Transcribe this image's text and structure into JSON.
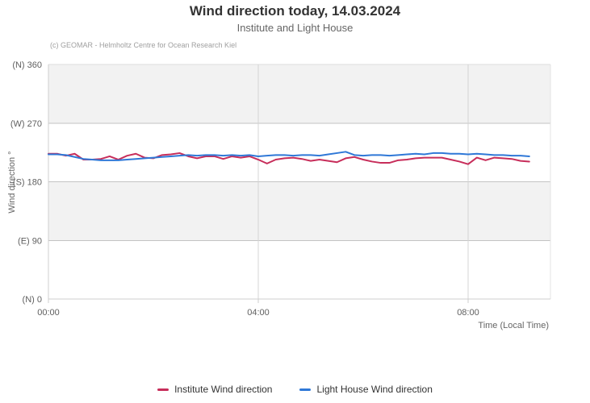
{
  "chart_data": {
    "type": "line",
    "title": "Wind direction today, 14.03.2024",
    "subtitle": "Institute and Light House",
    "credit": "(c) GEOMAR - Helmholtz Centre for Ocean Research Kiel",
    "xlabel": "Time (Local Time)",
    "ylabel": "Wind direction °",
    "ylim": [
      0,
      360
    ],
    "xlim_hours": [
      0,
      9.57
    ],
    "x_tick_hours": [
      0,
      4,
      8
    ],
    "x_tick_labels": [
      "00:00",
      "04:00",
      "08:00"
    ],
    "y_ticks": [
      {
        "value": 0,
        "label": "(N) 0"
      },
      {
        "value": 90,
        "label": "(E) 90"
      },
      {
        "value": 180,
        "label": "(S) 180"
      },
      {
        "value": 270,
        "label": "(W) 270"
      },
      {
        "value": 360,
        "label": "(N) 360"
      }
    ],
    "bands": [
      {
        "from": 270,
        "to": 360
      },
      {
        "from": 90,
        "to": 180
      }
    ],
    "band_color": "#f2f2f2",
    "grid": true,
    "legend_position": "bottom-center",
    "start_time": "00:00",
    "interval_minutes": 10,
    "series": [
      {
        "name": "Institute Wind direction",
        "color": "#c72d5a",
        "values": [
          223,
          223,
          220,
          223,
          214,
          214,
          215,
          219,
          214,
          220,
          223,
          217,
          216,
          221,
          222,
          224,
          219,
          216,
          219,
          219,
          215,
          219,
          217,
          219,
          214,
          208,
          214,
          216,
          217,
          215,
          212,
          214,
          212,
          210,
          216,
          218,
          214,
          211,
          209,
          209,
          213,
          214,
          216,
          217,
          217,
          217,
          214,
          211,
          207,
          217,
          213,
          217,
          216,
          215,
          212,
          211
        ]
      },
      {
        "name": "Light House Wind direction",
        "color": "#2f78d7",
        "values": [
          222,
          222,
          221,
          218,
          215,
          214,
          213,
          213,
          213,
          214,
          215,
          216,
          217,
          218,
          219,
          220,
          221,
          220,
          221,
          221,
          220,
          221,
          220,
          221,
          219,
          220,
          221,
          221,
          220,
          221,
          221,
          220,
          222,
          224,
          226,
          221,
          220,
          221,
          221,
          220,
          221,
          222,
          223,
          222,
          224,
          224,
          223,
          223,
          222,
          223,
          222,
          221,
          221,
          220,
          220,
          219
        ]
      }
    ]
  }
}
